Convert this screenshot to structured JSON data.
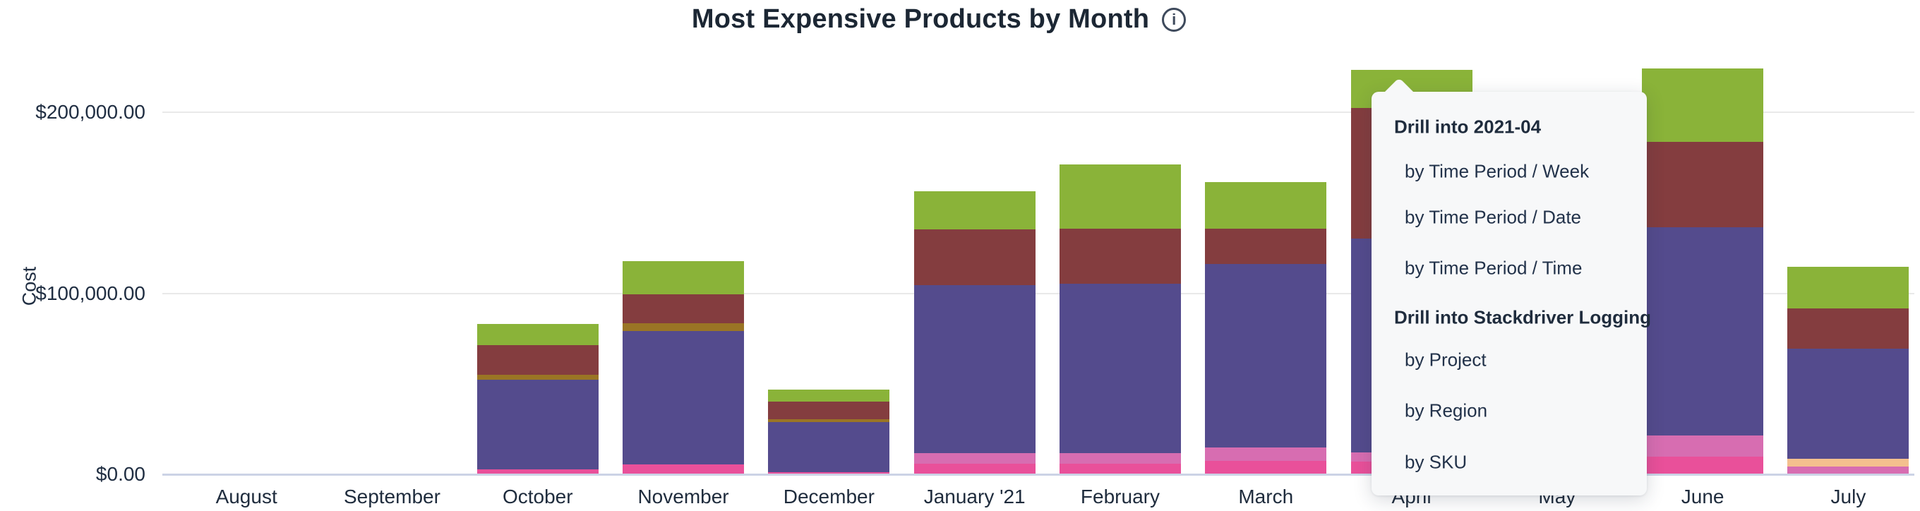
{
  "title": "Most Expensive Products by Month",
  "colors": {
    "green": "#8ab339",
    "maroon": "#843d3f",
    "olive": "#9a7525",
    "purple": "#544b8d",
    "orchid": "#d76db1",
    "pink": "#e9509a",
    "peach": "#f4c08e"
  },
  "menu": {
    "sections": [
      {
        "header": "Drill into 2021-04",
        "items": [
          "by Time Period / Week",
          "by Time Period / Date",
          "by Time Period / Time"
        ]
      },
      {
        "header": "Drill into Stackdriver Logging",
        "items": [
          "by Project",
          "by Region",
          "by SKU"
        ]
      }
    ]
  },
  "chart_data": {
    "type": "bar",
    "stacked": true,
    "title": "Most Expensive Products by Month",
    "xlabel": "",
    "ylabel": "Cost",
    "grid": "horizontal",
    "legend": "none visible; series identified by color",
    "ylim": [
      0,
      260000
    ],
    "y_ticks": [
      {
        "label": "$0.00",
        "value": 0
      },
      {
        "label": "$100,000.00",
        "value": 100000
      },
      {
        "label": "$200,000.00",
        "value": 200000
      }
    ],
    "categories": [
      "August",
      "September",
      "October",
      "November",
      "December",
      "January '21",
      "February",
      "March",
      "April",
      "May",
      "June",
      "July"
    ],
    "bars": [
      {
        "month": "August",
        "total": 0,
        "segments": []
      },
      {
        "month": "September",
        "total": 0,
        "segments": []
      },
      {
        "month": "October",
        "total": 83000,
        "segments": [
          {
            "series": "pink",
            "value": 2700
          },
          {
            "series": "purple",
            "value": 49500
          },
          {
            "series": "olive",
            "value": 2700
          },
          {
            "series": "maroon",
            "value": 16400
          },
          {
            "series": "green",
            "value": 11700
          }
        ]
      },
      {
        "month": "November",
        "total": 117800,
        "segments": [
          {
            "series": "pink",
            "value": 5500
          },
          {
            "series": "purple",
            "value": 73700
          },
          {
            "series": "olive",
            "value": 4300
          },
          {
            "series": "maroon",
            "value": 16000
          },
          {
            "series": "green",
            "value": 18300
          }
        ]
      },
      {
        "month": "December",
        "total": 46800,
        "segments": [
          {
            "series": "pink",
            "value": 1200
          },
          {
            "series": "purple",
            "value": 27700
          },
          {
            "series": "olive",
            "value": 1600
          },
          {
            "series": "maroon",
            "value": 9700
          },
          {
            "series": "green",
            "value": 6600
          }
        ]
      },
      {
        "month": "January '21",
        "total": 156300,
        "segments": [
          {
            "series": "pink",
            "value": 5800
          },
          {
            "series": "orchid",
            "value": 5800
          },
          {
            "series": "purple",
            "value": 92800
          },
          {
            "series": "maroon",
            "value": 30800
          },
          {
            "series": "green",
            "value": 21100
          }
        ]
      },
      {
        "month": "February",
        "total": 171100,
        "segments": [
          {
            "series": "pink",
            "value": 5800
          },
          {
            "series": "orchid",
            "value": 5800
          },
          {
            "series": "purple",
            "value": 93600
          },
          {
            "series": "maroon",
            "value": 30400
          },
          {
            "series": "green",
            "value": 35500
          }
        ]
      },
      {
        "month": "March",
        "total": 161400,
        "segments": [
          {
            "series": "pink",
            "value": 7400
          },
          {
            "series": "orchid",
            "value": 7400
          },
          {
            "series": "purple",
            "value": 101400
          },
          {
            "series": "maroon",
            "value": 19500
          },
          {
            "series": "green",
            "value": 25700
          }
        ]
      },
      {
        "month": "April",
        "total": 223400,
        "drilldown_target": "2021-04",
        "segments": [
          {
            "series": "pink",
            "value": 7000
          },
          {
            "series": "orchid",
            "value": 5100
          },
          {
            "series": "purple",
            "value": 118100
          },
          {
            "series": "maroon",
            "value": 72100
          },
          {
            "series": "green",
            "value": 21100
          }
        ]
      },
      {
        "month": "May",
        "total": null,
        "hidden_behind_menu": true,
        "segments": null
      },
      {
        "month": "June",
        "total": 224100,
        "segments": [
          {
            "series": "pink",
            "value": 9700
          },
          {
            "series": "orchid",
            "value": 11700
          },
          {
            "series": "purple",
            "value": 115000
          },
          {
            "series": "maroon",
            "value": 47200
          },
          {
            "series": "green",
            "value": 40500
          }
        ]
      },
      {
        "month": "July",
        "total": 114600,
        "segments": [
          {
            "series": "orchid",
            "value": 4300
          },
          {
            "series": "peach",
            "value": 4300
          },
          {
            "series": "purple",
            "value": 60800
          },
          {
            "series": "maroon",
            "value": 22200
          },
          {
            "series": "green",
            "value": 23000
          }
        ]
      }
    ]
  }
}
